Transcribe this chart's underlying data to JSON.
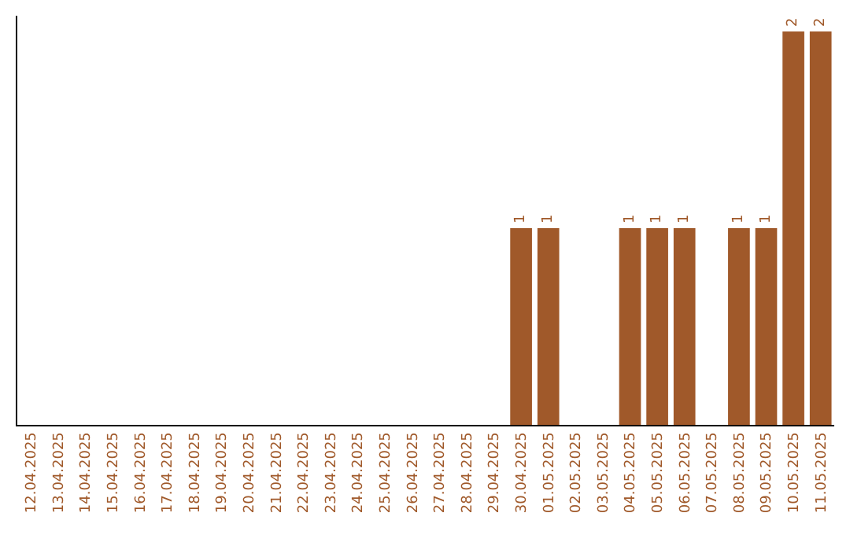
{
  "chart_data": {
    "type": "bar",
    "categories": [
      "12.04.2025",
      "13.04.2025",
      "14.04.2025",
      "15.04.2025",
      "16.04.2025",
      "17.04.2025",
      "18.04.2025",
      "19.04.2025",
      "20.04.2025",
      "21.04.2025",
      "22.04.2025",
      "23.04.2025",
      "24.04.2025",
      "25.04.2025",
      "26.04.2025",
      "27.04.2025",
      "28.04.2025",
      "29.04.2025",
      "30.04.2025",
      "01.05.2025",
      "02.05.2025",
      "03.05.2025",
      "04.05.2025",
      "05.05.2025",
      "06.05.2025",
      "07.05.2025",
      "08.05.2025",
      "09.05.2025",
      "10.05.2025",
      "11.05.2025"
    ],
    "values": [
      null,
      null,
      null,
      null,
      null,
      null,
      null,
      null,
      null,
      null,
      null,
      null,
      null,
      null,
      null,
      null,
      null,
      null,
      1,
      1,
      null,
      null,
      1,
      1,
      1,
      null,
      1,
      1,
      2,
      2
    ],
    "value_labels": [
      null,
      null,
      null,
      null,
      null,
      null,
      null,
      null,
      null,
      null,
      null,
      null,
      null,
      null,
      null,
      null,
      null,
      null,
      "1",
      "1",
      null,
      null,
      "1",
      "1",
      "1",
      null,
      "1",
      "1",
      "2",
      "2"
    ],
    "color": "#a0592a",
    "ylim": [
      0,
      2.08
    ],
    "tick_labels": "x",
    "legend": false
  }
}
